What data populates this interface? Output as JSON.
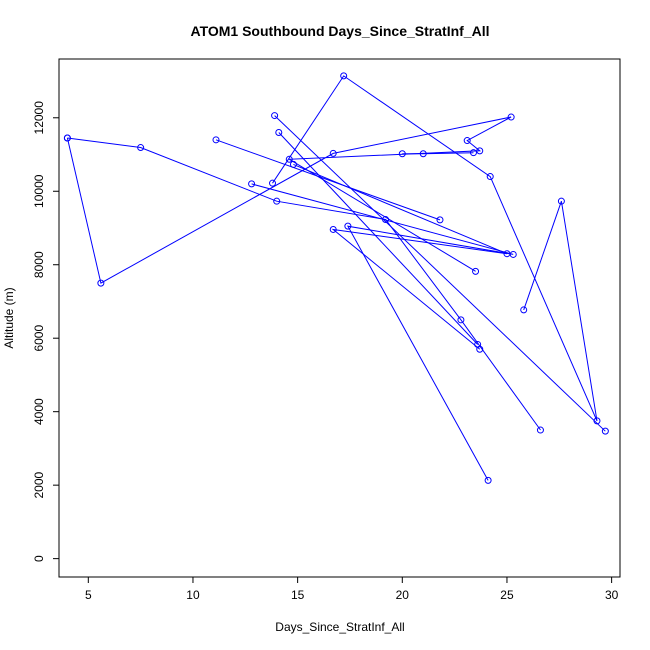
{
  "chart_data": {
    "type": "line",
    "title": "ATOM1 Southbound Days_Since_StratInf_All",
    "xlabel": "Days_Since_StratInf_All",
    "ylabel": "Altitude (m)",
    "xlim": [
      3.6,
      30.4
    ],
    "ylim": [
      -500,
      13600
    ],
    "xticks": [
      5,
      10,
      15,
      20,
      25,
      30
    ],
    "yticks": [
      0,
      2000,
      4000,
      6000,
      8000,
      10000,
      12000
    ],
    "grid": false,
    "legend": "none",
    "color": "#0000ff",
    "marker": "open-circle",
    "series": [
      {
        "x": [
          4.0,
          5.6,
          16.7,
          25.2,
          23.1,
          23.7,
          14.6,
          23.5
        ],
        "y": [
          11450,
          7500,
          11030,
          12020,
          11380,
          11100,
          10870,
          7820
        ]
      },
      {
        "x": [
          4.0,
          7.5,
          14.0,
          19.2,
          22.8,
          26.6
        ],
        "y": [
          11450,
          11190,
          9730,
          9230,
          6500,
          3500
        ]
      },
      {
        "x": [
          11.1,
          21.8
        ],
        "y": [
          11400,
          9220
        ]
      },
      {
        "x": [
          12.8,
          25.3,
          17.4,
          24.1
        ],
        "y": [
          10200,
          8280,
          9050,
          2130
        ]
      },
      {
        "x": [
          13.8,
          17.2,
          24.2,
          29.3,
          27.6,
          25.8
        ],
        "y": [
          10220,
          13140,
          10400,
          3750,
          9730,
          6770
        ]
      },
      {
        "x": [
          13.9,
          29.7
        ],
        "y": [
          12060,
          3470
        ]
      },
      {
        "x": [
          14.1,
          23.6
        ],
        "y": [
          11600,
          5830
        ]
      },
      {
        "x": [
          14.8,
          25.0,
          16.7,
          23.7
        ],
        "y": [
          10730,
          8300,
          8960,
          5700
        ]
      },
      {
        "x": [
          20.0,
          21.0,
          23.4
        ],
        "y": [
          11020,
          11020,
          11050
        ]
      }
    ]
  }
}
